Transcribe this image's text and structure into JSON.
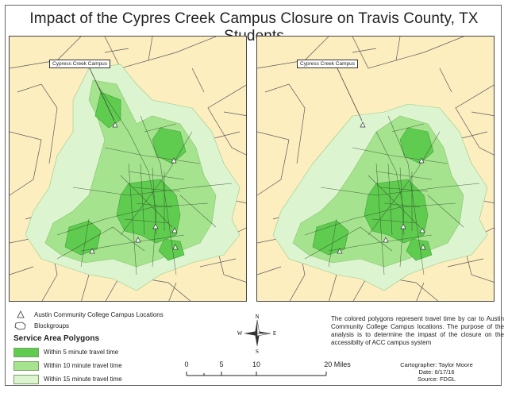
{
  "title": "Impact of the Cypres Creek Campus Closure on Travis County, TX Students",
  "maps": {
    "left": {
      "callout": "Cypress Creek Campus",
      "campus_open": true
    },
    "right": {
      "callout": "Cypress Creek Campus",
      "campus_open": false
    }
  },
  "legend": {
    "campus_label": "Austin Community College Campus Locations",
    "blockgroups_label": "Blockgroups",
    "heading": "Service Area Polygons",
    "items": [
      {
        "label": "Within 5 minute travel time",
        "color": "#5fcc4f"
      },
      {
        "label": "Within 10 minute travel time",
        "color": "#a6e38f"
      },
      {
        "label": "Within 15 minute travel time",
        "color": "#dcf4cf"
      }
    ]
  },
  "compass": {
    "n": "N",
    "s": "S",
    "e": "E",
    "w": "W"
  },
  "scale_bar": {
    "ticks": [
      "0",
      "5",
      "10",
      "20 Miles"
    ],
    "tick_values": [
      0,
      5,
      10,
      20
    ]
  },
  "description": "The colored polygons represent travel time by car to Austin Community College Campus locations. The purpose of the analysis is to determine the impast of the closure on the accessibilty of ACC campus system",
  "credits": {
    "cartographer": "Cartographer: Taylor Moore",
    "date": "Date: 6/17/16",
    "source": "Source: FDGL"
  },
  "colors": {
    "background": "#fdeec0",
    "zone_5": "#5fcc4f",
    "zone_10": "#a6e38f",
    "zone_15": "#dcf4cf",
    "roads": "#2f4a2a",
    "boundaries": "#5a5a5a"
  }
}
